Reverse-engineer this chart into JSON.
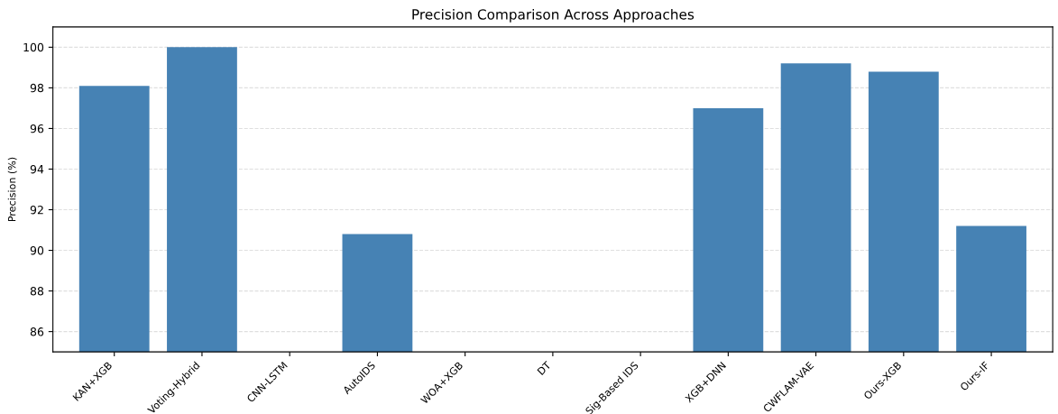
{
  "chart_data": {
    "type": "bar",
    "title": "Precision Comparison Across Approaches",
    "ylabel": "Precision (%)",
    "categories": [
      "KAN+XGB",
      "Voting-Hybrid",
      "CNN-LSTM",
      "AutoIDS",
      "WOA+XGB",
      "DT",
      "Sig-Based IDS",
      "XGB+DNN",
      "CWFLAM-VAE",
      "Ours-XGB",
      "Ours-IF"
    ],
    "values": [
      98.1,
      100,
      null,
      90.8,
      null,
      null,
      null,
      97.0,
      99.2,
      98.8,
      91.2
    ],
    "color": "#4682b4",
    "ylim": [
      85,
      101
    ],
    "yticks": [
      86,
      88,
      90,
      92,
      94,
      96,
      98,
      100
    ],
    "grid": "y"
  }
}
